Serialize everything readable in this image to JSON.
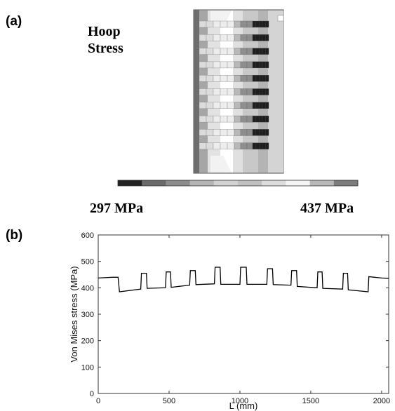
{
  "panel_a": {
    "label": "(a)",
    "title_line1": "Hoop",
    "title_line2": "Stress",
    "scale_min_label": "297 MPa",
    "scale_max_label": "437 MPa",
    "colorbar": [
      "#222222",
      "#6a6a6a",
      "#8c8c8c",
      "#b4b4b4",
      "#d2d2d2",
      "#c0c0c0",
      "#dcdcdc",
      "#f4f4f4",
      "#b8b8b8",
      "#7c7c7c"
    ]
  },
  "panel_b": {
    "label": "(b)"
  },
  "chart_data": {
    "type": "line",
    "title": "",
    "xlabel": "L (mm)",
    "ylabel": "Von Mises stress (MPa)",
    "xlim": [
      0,
      2050
    ],
    "ylim": [
      0,
      600
    ],
    "xticks": [
      0,
      500,
      1000,
      1500,
      2000
    ],
    "yticks": [
      0,
      100,
      200,
      300,
      400,
      500,
      600
    ],
    "grid": false,
    "series": [
      {
        "color": "#000000",
        "x": [
          0,
          100,
          140,
          150,
          300,
          305,
          340,
          345,
          475,
          480,
          510,
          515,
          645,
          650,
          685,
          690,
          820,
          825,
          860,
          865,
          1000,
          1005,
          1045,
          1050,
          1190,
          1195,
          1230,
          1235,
          1360,
          1365,
          1400,
          1405,
          1545,
          1550,
          1580,
          1585,
          1725,
          1730,
          1760,
          1765,
          1905,
          1910,
          1950,
          2000,
          2050
        ],
        "y": [
          437,
          440,
          440,
          385,
          395,
          455,
          455,
          398,
          400,
          460,
          460,
          402,
          410,
          465,
          465,
          412,
          415,
          478,
          478,
          413,
          413,
          478,
          478,
          413,
          413,
          472,
          472,
          412,
          410,
          465,
          465,
          405,
          400,
          460,
          460,
          398,
          395,
          455,
          455,
          392,
          385,
          442,
          440,
          437,
          436
        ]
      }
    ]
  }
}
